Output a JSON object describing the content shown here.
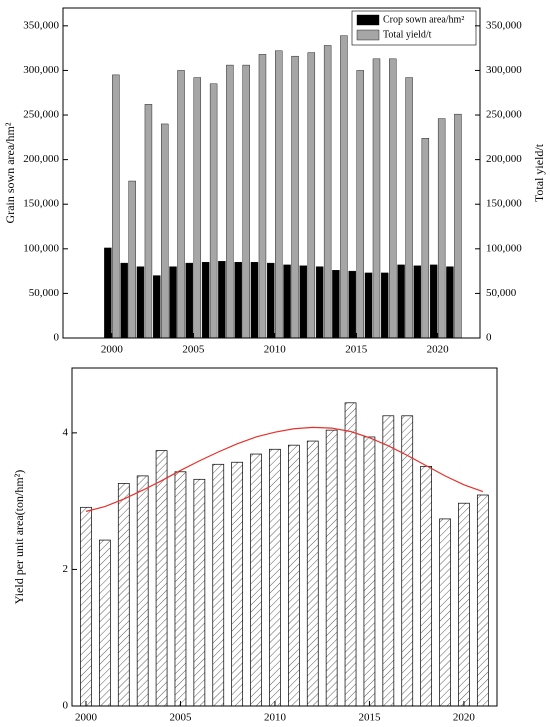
{
  "chart_data": [
    {
      "type": "bar",
      "categories": [
        2000,
        2001,
        2002,
        2003,
        2004,
        2005,
        2006,
        2007,
        2008,
        2009,
        2010,
        2011,
        2012,
        2013,
        2014,
        2015,
        2016,
        2017,
        2018,
        2019,
        2020,
        2021
      ],
      "series": [
        {
          "name": "Crop sown area/hm²",
          "color": "#000000",
          "values": [
            101000,
            84000,
            80000,
            70000,
            80000,
            84000,
            85000,
            86000,
            85000,
            85000,
            84000,
            82000,
            81000,
            80000,
            76000,
            75000,
            73000,
            73000,
            82000,
            81000,
            82000,
            80000
          ]
        },
        {
          "name": "Total yield/t",
          "color": "#a6a6a6",
          "axis": "y2",
          "values": [
            295000,
            176000,
            262000,
            240000,
            300000,
            292000,
            285000,
            306000,
            306000,
            318000,
            322000,
            316000,
            320000,
            328000,
            339000,
            300000,
            313000,
            313000,
            292000,
            224000,
            246000,
            251000
          ]
        }
      ],
      "y_label": "Grain sown area/hm²",
      "y2_label": "Total yield/t",
      "xlim": [
        1997,
        2022.6
      ],
      "xticks": [
        2000,
        2005,
        2010,
        2015,
        2020
      ],
      "ylim": [
        0,
        370000
      ],
      "yticks": [
        0,
        {
          "value": 50000,
          "label": "50,000"
        },
        {
          "value": 100000,
          "label": "100,000"
        },
        {
          "value": 150000,
          "label": "150,000"
        },
        {
          "value": 200000,
          "label": "200,000"
        },
        {
          "value": 250000,
          "label": "250,000"
        },
        {
          "value": 300000,
          "label": "300,000"
        },
        {
          "value": 350000,
          "label": "350,000"
        }
      ],
      "y2lim": [
        0,
        370000
      ],
      "y2ticks": [
        0,
        {
          "value": 50000,
          "label": "50,000"
        },
        {
          "value": 100000,
          "label": "100,000"
        },
        {
          "value": 150000,
          "label": "150,000"
        },
        {
          "value": 200000,
          "label": "200,000"
        },
        {
          "value": 250000,
          "label": "250,000"
        },
        {
          "value": 300000,
          "label": "300,000"
        },
        {
          "value": 350000,
          "label": "350,000"
        }
      ],
      "legend": "top-right"
    },
    {
      "type": "hatched-bar",
      "categories": [
        2000,
        2001,
        2002,
        2003,
        2004,
        2005,
        2006,
        2007,
        2008,
        2009,
        2010,
        2011,
        2012,
        2013,
        2014,
        2015,
        2016,
        2017,
        2018,
        2019,
        2020,
        2021
      ],
      "values": [
        2.91,
        2.43,
        3.26,
        3.37,
        3.74,
        3.43,
        3.32,
        3.54,
        3.57,
        3.69,
        3.76,
        3.82,
        3.88,
        4.04,
        4.44,
        3.94,
        4.25,
        4.25,
        3.51,
        2.74,
        2.97,
        3.09
      ],
      "trend": [
        2.85,
        2.92,
        3.03,
        3.16,
        3.3,
        3.45,
        3.59,
        3.72,
        3.84,
        3.94,
        4.01,
        4.06,
        4.08,
        4.07,
        4.02,
        3.93,
        3.81,
        3.67,
        3.52,
        3.37,
        3.24,
        3.14
      ],
      "trend_color": "#e8302a",
      "y_label": "Yield per unit area(ton/hm²)",
      "xlim": [
        1999.26,
        2021.75
      ],
      "xticks": [
        2000,
        2005,
        2010,
        2015,
        2020
      ],
      "ylim": [
        0,
        4.95
      ],
      "yticks": [
        0,
        2,
        4
      ]
    }
  ]
}
